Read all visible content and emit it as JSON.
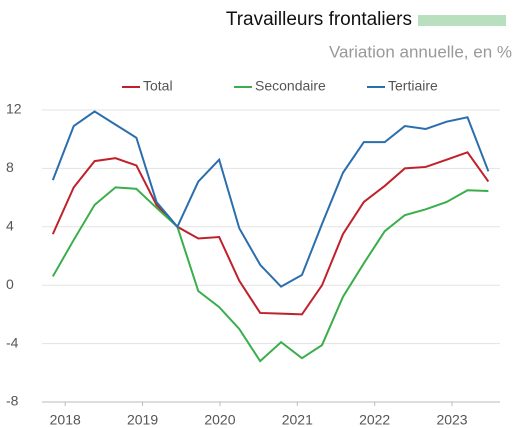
{
  "chart_data": {
    "type": "line",
    "title": "Travailleurs frontaliers",
    "subtitle": "Variation annuelle, en %",
    "x": [
      2017.84,
      2018.11,
      2018.38,
      2018.65,
      2018.92,
      2019.18,
      2019.45,
      2019.72,
      2019.99,
      2020.25,
      2020.52,
      2020.79,
      2021.06,
      2021.32,
      2021.59,
      2021.86,
      2022.13,
      2022.39,
      2022.66,
      2022.93,
      2023.2,
      2023.47
    ],
    "xlim": [
      2017.7,
      2023.62
    ],
    "xticks": [
      2018,
      2019,
      2020,
      2021,
      2022,
      2023
    ],
    "ylim": [
      -8,
      12
    ],
    "yticks": [
      -8,
      -4,
      0,
      4,
      8,
      12
    ],
    "grid": true,
    "legend": "top",
    "series": [
      {
        "name": "Total",
        "color": "#c0202a",
        "values": [
          3.5,
          6.7,
          8.5,
          8.7,
          8.2,
          5.5,
          4.0,
          3.2,
          3.3,
          0.3,
          -1.9,
          -1.95,
          -2.0,
          0.0,
          3.5,
          5.7,
          6.8,
          8.0,
          8.1,
          8.6,
          9.1,
          7.1
        ]
      },
      {
        "name": "Secondaire",
        "color": "#3aae4a",
        "values": [
          0.6,
          3.1,
          5.5,
          6.7,
          6.6,
          5.3,
          4.0,
          -0.4,
          -1.5,
          -3.0,
          -5.2,
          -3.9,
          -5.0,
          -4.1,
          -0.8,
          1.5,
          3.7,
          4.8,
          5.2,
          5.7,
          6.5,
          6.45
        ]
      },
      {
        "name": "Tertiaire",
        "color": "#2a6ead",
        "values": [
          7.2,
          10.9,
          11.9,
          11.0,
          10.1,
          5.7,
          4.0,
          7.1,
          8.6,
          3.9,
          1.4,
          -0.1,
          0.7,
          4.2,
          7.7,
          9.8,
          9.8,
          10.9,
          10.7,
          11.2,
          11.5,
          7.8
        ]
      }
    ]
  }
}
